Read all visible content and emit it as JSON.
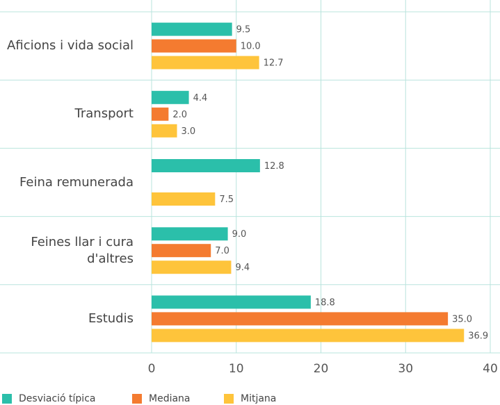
{
  "chart_data": {
    "type": "bar",
    "orientation": "horizontal",
    "categories": [
      "Aficions i vida social",
      "Transport",
      "Feina remunerada",
      "Feines llar i cura d'altres",
      "Estudis"
    ],
    "series": [
      {
        "name": "Desviació típica",
        "color": "#2bbfaa",
        "values": [
          9.5,
          4.4,
          12.8,
          9.0,
          18.8
        ],
        "value_labels": [
          "9.5",
          "4.4",
          "12.8",
          "9.0",
          "18.8"
        ]
      },
      {
        "name": "Mediana",
        "color": "#f47b30",
        "values": [
          10.0,
          2.0,
          null,
          7.0,
          35.0
        ],
        "value_labels": [
          "10.0",
          "2.0",
          null,
          "7.0",
          "35.0"
        ]
      },
      {
        "name": "Mitjana",
        "color": "#fec43b",
        "values": [
          12.7,
          3.0,
          7.5,
          9.4,
          36.9
        ],
        "value_labels": [
          "12.7",
          "3.0",
          "7.5",
          "9.4",
          "36.9"
        ]
      }
    ],
    "xlim": [
      0,
      40
    ],
    "xticks": [
      0,
      10,
      20,
      30,
      40
    ],
    "grid": true
  }
}
